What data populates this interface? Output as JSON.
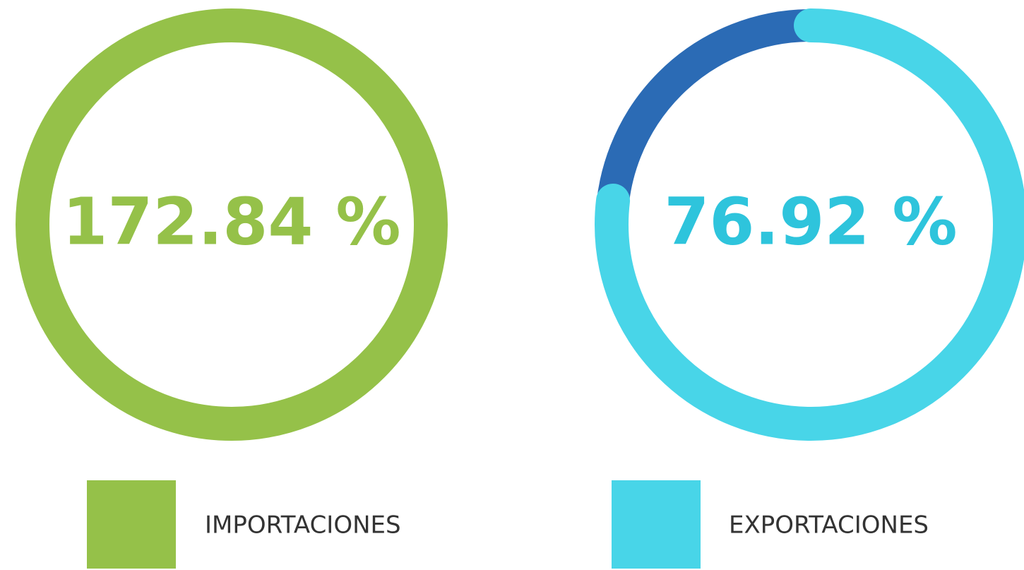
{
  "chart_data": [
    {
      "type": "gauge",
      "series": [
        {
          "name": "IMPORTACIONES",
          "color": "#95c149",
          "values": [
            172.84
          ],
          "value_labels": [
            "172.84 %"
          ]
        }
      ],
      "label_color": "#95c149"
    },
    {
      "type": "gauge",
      "series": [
        {
          "name": "EXPORTACIONES",
          "color": "#48d5e8",
          "values": [
            76.92
          ],
          "value_labels": [
            "76.92 %"
          ]
        }
      ],
      "track_color": "#2b6bb5",
      "label_color": "#2ec4dc"
    }
  ]
}
